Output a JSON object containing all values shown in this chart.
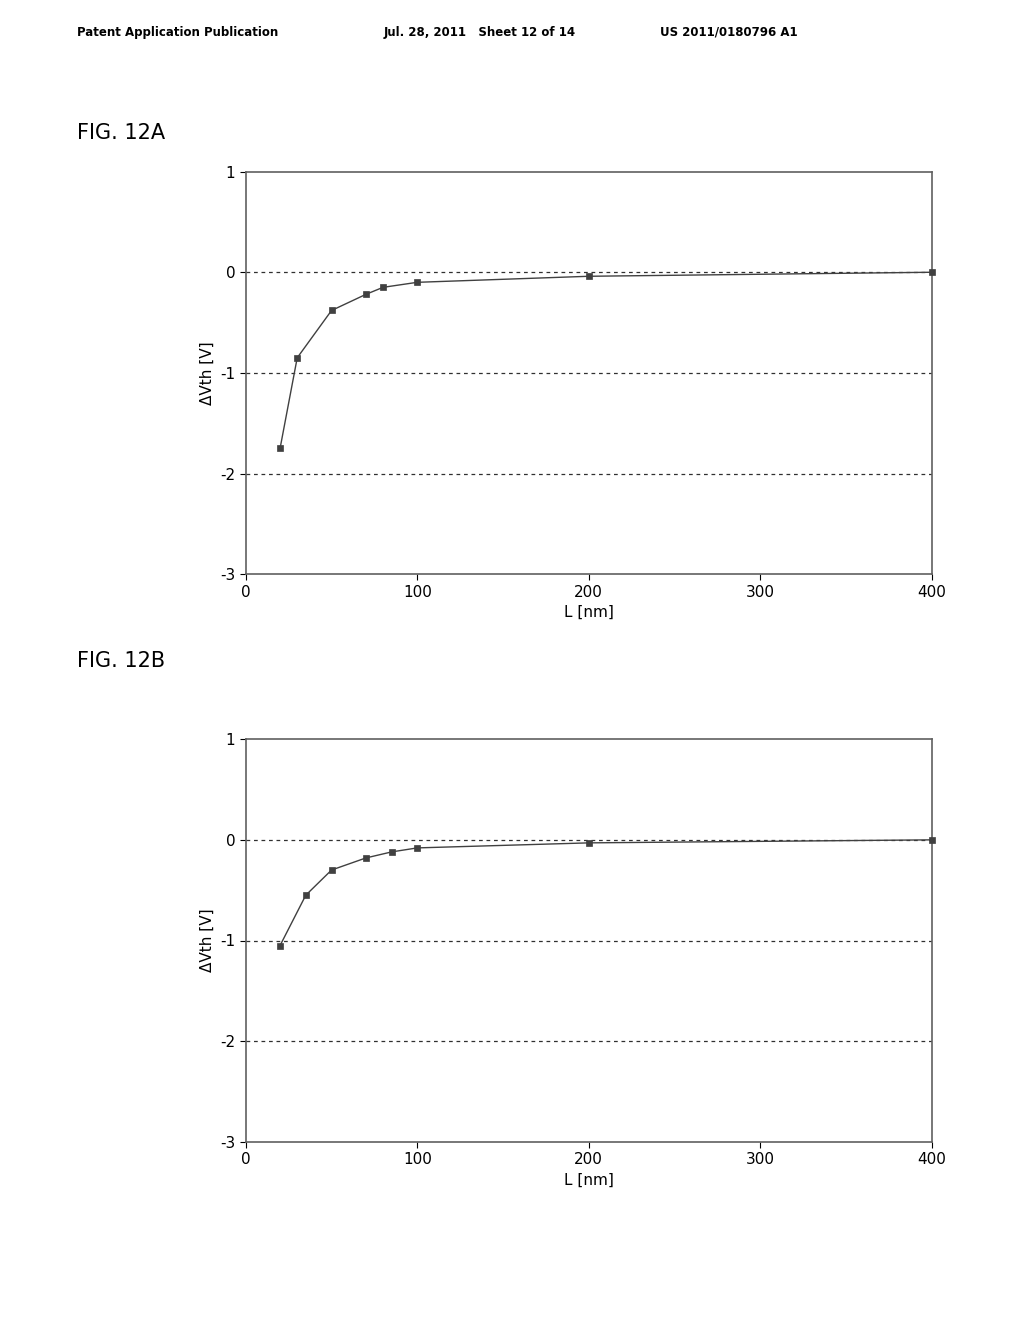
{
  "header_left": "Patent Application Publication",
  "header_mid": "Jul. 28, 2011   Sheet 12 of 14",
  "header_right": "US 2011/0180796 A1",
  "fig_label_A": "FIG. 12A",
  "fig_label_B": "FIG. 12B",
  "xlabel": "L [nm]",
  "ylabel": "ΔVth [V]",
  "xlim": [
    0,
    400
  ],
  "ylim": [
    -3,
    1
  ],
  "xticks": [
    0,
    100,
    200,
    300,
    400
  ],
  "yticks": [
    -3,
    -2,
    -1,
    0,
    1
  ],
  "dashed_lines": [
    0,
    -1,
    -2
  ],
  "plot_A_x": [
    20,
    30,
    50,
    70,
    80,
    100,
    200,
    400
  ],
  "plot_A_y": [
    -1.75,
    -0.85,
    -0.38,
    -0.22,
    -0.15,
    -0.1,
    -0.04,
    0.0
  ],
  "plot_B_x": [
    20,
    35,
    50,
    70,
    85,
    100,
    200,
    400
  ],
  "plot_B_y": [
    -1.05,
    -0.55,
    -0.3,
    -0.18,
    -0.12,
    -0.08,
    -0.03,
    0.0
  ],
  "marker": "s",
  "marker_size": 5,
  "line_color": "#404040",
  "marker_color": "#404040",
  "background_color": "#ffffff",
  "border_color": "#606060",
  "spine_lw": 1.2
}
